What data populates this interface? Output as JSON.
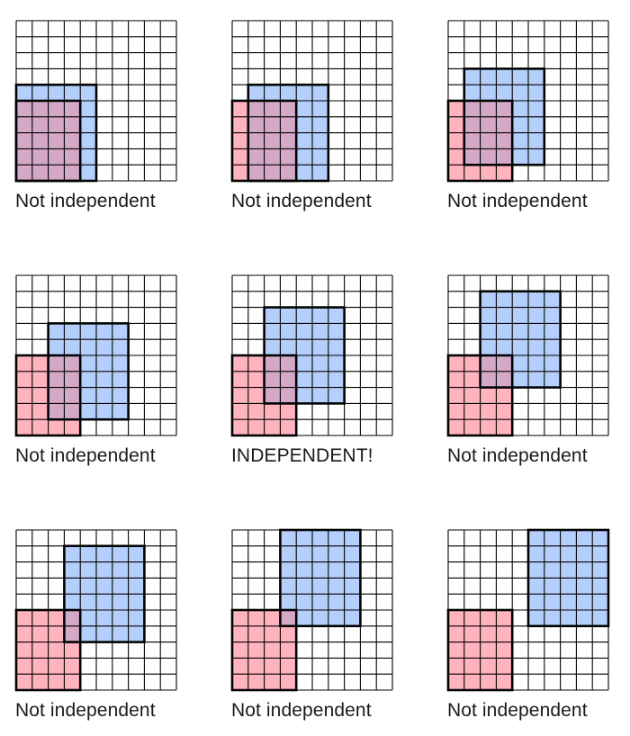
{
  "grid": {
    "cols": 10,
    "rows": 10
  },
  "colors": {
    "red_fill": "#ffb3bd",
    "blue_fill": "#b5cffc",
    "overlap_fill": "#d4a9c8",
    "stroke": "#000000"
  },
  "panels": [
    {
      "caption": "Not independent",
      "red": {
        "x": 0,
        "y": 5,
        "w": 4,
        "h": 5
      },
      "blue": {
        "x": 0,
        "y": 4,
        "w": 5,
        "h": 6
      }
    },
    {
      "caption": "Not independent",
      "red": {
        "x": 0,
        "y": 5,
        "w": 4,
        "h": 5
      },
      "blue": {
        "x": 1,
        "y": 4,
        "w": 5,
        "h": 6
      }
    },
    {
      "caption": "Not independent",
      "red": {
        "x": 0,
        "y": 5,
        "w": 4,
        "h": 5
      },
      "blue": {
        "x": 1,
        "y": 3,
        "w": 5,
        "h": 6
      }
    },
    {
      "caption": "Not independent",
      "red": {
        "x": 0,
        "y": 5,
        "w": 4,
        "h": 5
      },
      "blue": {
        "x": 2,
        "y": 3,
        "w": 5,
        "h": 6
      }
    },
    {
      "caption": "INDEPENDENT!",
      "red": {
        "x": 0,
        "y": 5,
        "w": 4,
        "h": 5
      },
      "blue": {
        "x": 2,
        "y": 2,
        "w": 5,
        "h": 6
      }
    },
    {
      "caption": "Not independent",
      "red": {
        "x": 0,
        "y": 5,
        "w": 4,
        "h": 5
      },
      "blue": {
        "x": 2,
        "y": 1,
        "w": 5,
        "h": 6
      }
    },
    {
      "caption": "Not independent",
      "red": {
        "x": 0,
        "y": 5,
        "w": 4,
        "h": 5
      },
      "blue": {
        "x": 3,
        "y": 1,
        "w": 5,
        "h": 6
      }
    },
    {
      "caption": "Not independent",
      "red": {
        "x": 0,
        "y": 5,
        "w": 4,
        "h": 5
      },
      "blue": {
        "x": 3,
        "y": 0,
        "w": 5,
        "h": 6
      }
    },
    {
      "caption": "Not independent",
      "red": {
        "x": 0,
        "y": 5,
        "w": 4,
        "h": 5
      },
      "blue": {
        "x": 5,
        "y": 0,
        "w": 5,
        "h": 6
      }
    }
  ]
}
